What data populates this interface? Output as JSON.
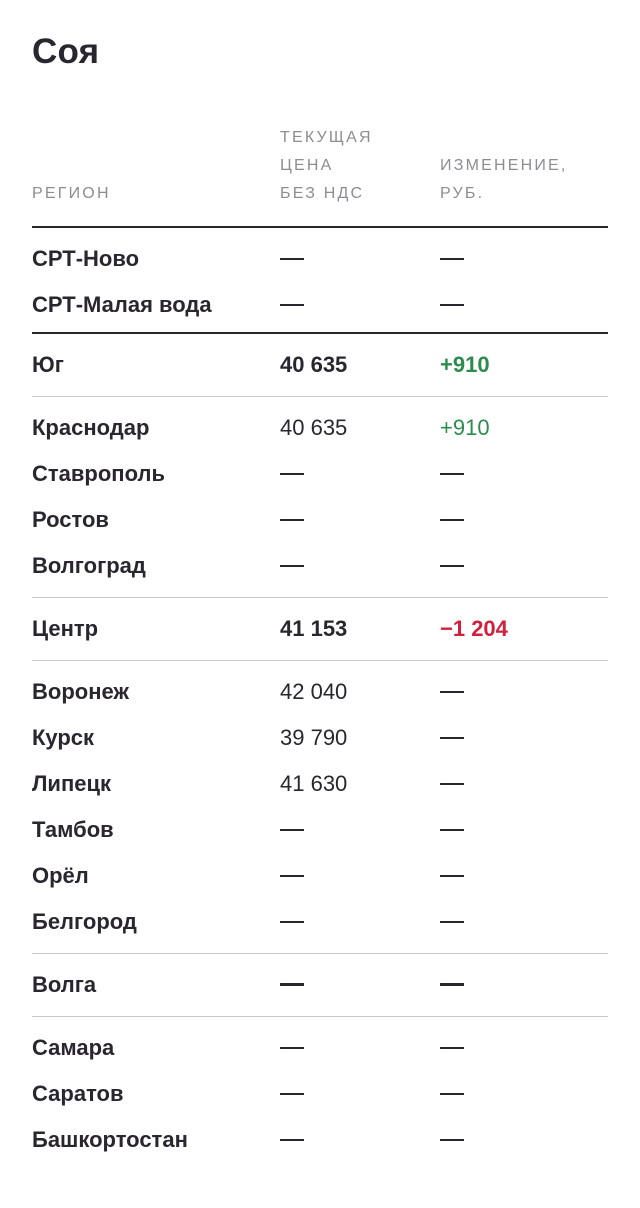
{
  "title": "Соя",
  "header": {
    "region": "РЕГИОН",
    "price": "ТЕКУЩАЯ\nЦЕНА\nБЕЗ НДС",
    "change": "ИЗМЕНЕНИЕ,\nРУБ."
  },
  "groups": [
    {
      "rows": [
        {
          "region": "СРТ-Ново",
          "price": "—",
          "change": "—"
        },
        {
          "region": "СРТ-Малая вода",
          "price": "—",
          "change": "—"
        }
      ]
    },
    {
      "summary": {
        "region": "Юг",
        "price": "40 635",
        "change": "+910"
      },
      "rows": [
        {
          "region": "Краснодар",
          "price": "40 635",
          "change": "+910"
        },
        {
          "region": "Ставрополь",
          "price": "—",
          "change": "—"
        },
        {
          "region": "Ростов",
          "price": "—",
          "change": "—"
        },
        {
          "region": "Волгоград",
          "price": "—",
          "change": "—"
        }
      ]
    },
    {
      "summary": {
        "region": "Центр",
        "price": "41 153",
        "change": "−1 204"
      },
      "rows": [
        {
          "region": "Воронеж",
          "price": "42 040",
          "change": "—"
        },
        {
          "region": "Курск",
          "price": "39 790",
          "change": "—"
        },
        {
          "region": "Липецк",
          "price": "41 630",
          "change": "—"
        },
        {
          "region": "Тамбов",
          "price": "—",
          "change": "—"
        },
        {
          "region": "Орёл",
          "price": "—",
          "change": "—"
        },
        {
          "region": "Белгород",
          "price": "—",
          "change": "—"
        }
      ]
    },
    {
      "summary": {
        "region": "Волга",
        "price": "—",
        "change": "—"
      },
      "rows": [
        {
          "region": "Самара",
          "price": "—",
          "change": "—"
        },
        {
          "region": "Саратов",
          "price": "—",
          "change": "—"
        },
        {
          "region": "Башкортостан",
          "price": "—",
          "change": "—"
        }
      ]
    }
  ],
  "colors": {
    "positive": "#2e8b4e",
    "negative": "#d0203d",
    "text": "#2a2630",
    "muted": "#8e8c92"
  }
}
